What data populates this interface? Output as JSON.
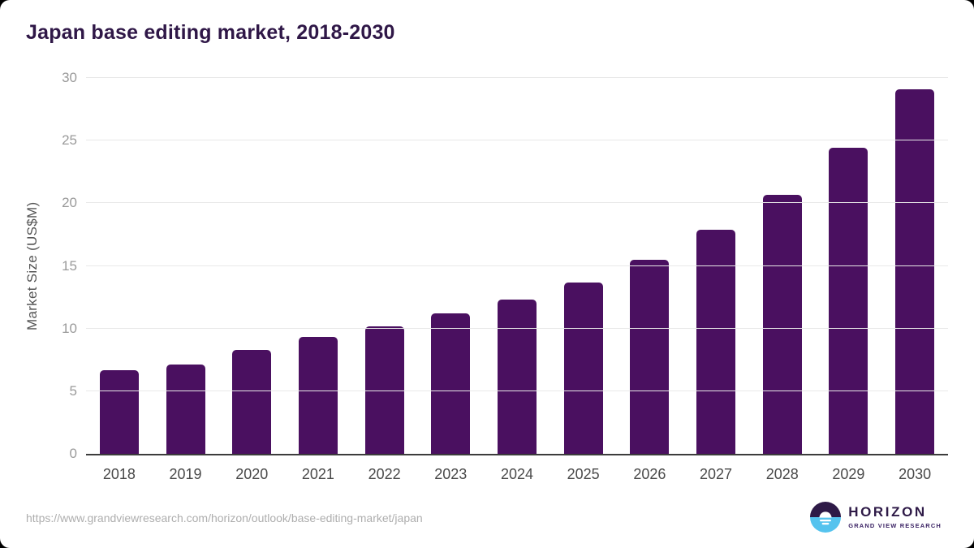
{
  "chart_data": {
    "type": "bar",
    "title": "Japan base editing market, 2018-2030",
    "categories": [
      "2018",
      "2019",
      "2020",
      "2021",
      "2022",
      "2023",
      "2024",
      "2025",
      "2026",
      "2027",
      "2028",
      "2029",
      "2030"
    ],
    "values": [
      6.7,
      7.1,
      8.3,
      9.3,
      10.2,
      11.2,
      12.3,
      13.7,
      15.5,
      17.9,
      20.7,
      24.4,
      29.1
    ],
    "xlabel": "",
    "ylabel": "Market Size (US$M)",
    "ylim": [
      0,
      30
    ],
    "yticks": [
      0,
      5,
      10,
      15,
      20,
      25,
      30
    ],
    "grid": true,
    "legend": "none",
    "bar_color": "#4a1060"
  },
  "colors": {
    "title": "#2f1747",
    "bar": "#4a1060",
    "gridline": "#e8e8e8",
    "axis_line": "#3c3c3c",
    "y_tick_label": "#9a9a9a",
    "x_tick_label": "#4a4a4a",
    "url_text": "#aeaeae",
    "logo_purple": "#2e1a47",
    "logo_blue": "#55c3ee"
  },
  "footer": {
    "url": "https://www.grandviewresearch.com/horizon/outlook/base-editing-market/japan",
    "logo": {
      "name": "HORIZON",
      "subtitle": "GRAND VIEW RESEARCH",
      "icon": "sunrise-horizon-icon"
    }
  }
}
